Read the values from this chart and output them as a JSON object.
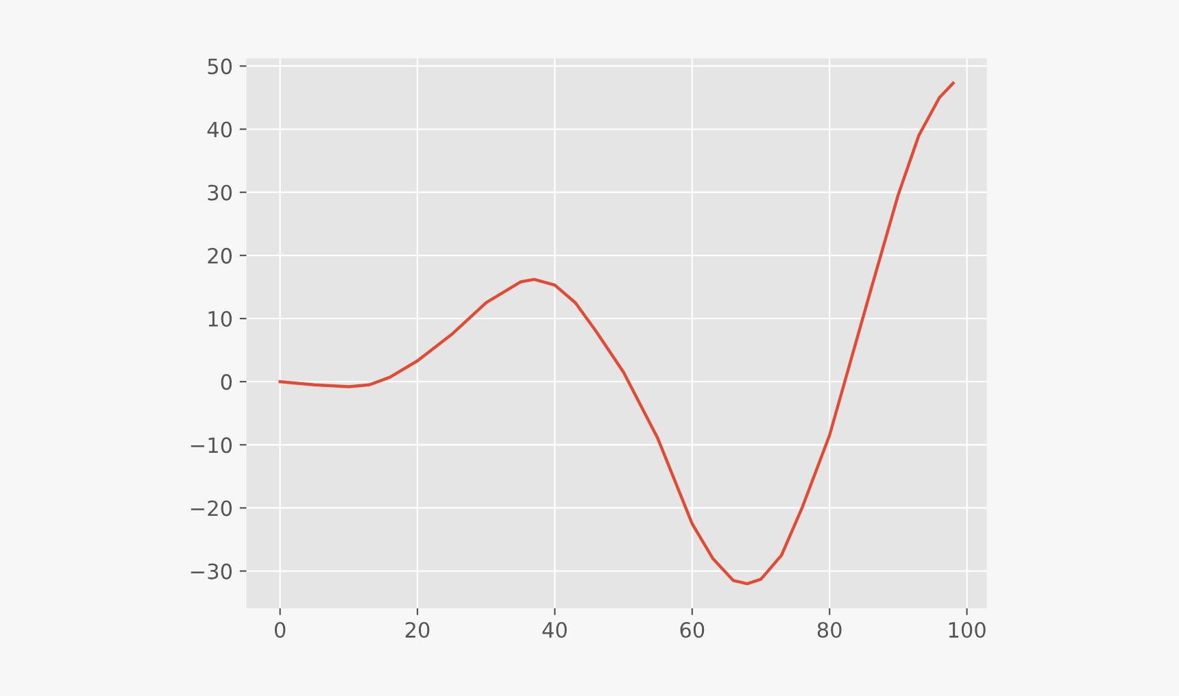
{
  "chart_data": {
    "type": "line",
    "x": [
      0,
      5,
      10,
      13,
      16,
      20,
      25,
      30,
      35,
      37,
      40,
      43,
      46,
      50,
      55,
      60,
      63,
      66,
      68,
      70,
      73,
      76,
      80,
      83,
      86,
      90,
      93,
      96,
      98
    ],
    "series": [
      {
        "color": "#e24a33",
        "values": [
          0,
          -0.5,
          -0.8,
          -0.5,
          0.7,
          3.3,
          7.5,
          12.5,
          15.8,
          16.2,
          15.3,
          12.5,
          8,
          1.5,
          -9,
          -22.5,
          -28,
          -31.5,
          -32,
          -31.3,
          -27.5,
          -20,
          -8.5,
          3,
          14.5,
          29.6,
          39,
          45,
          47.3
        ]
      }
    ],
    "xlim": [
      -4.9,
      102.9
    ],
    "ylim": [
      -35.9,
      51.2
    ],
    "xticks": [
      0,
      20,
      40,
      60,
      80,
      100
    ],
    "yticks": [
      {
        "value": -30,
        "label": "−30"
      },
      {
        "value": -20,
        "label": "−20"
      },
      {
        "value": -10,
        "label": "−10"
      },
      0,
      10,
      20,
      30,
      40,
      50
    ],
    "grid": true,
    "line_style": "solid",
    "marker": "none"
  }
}
